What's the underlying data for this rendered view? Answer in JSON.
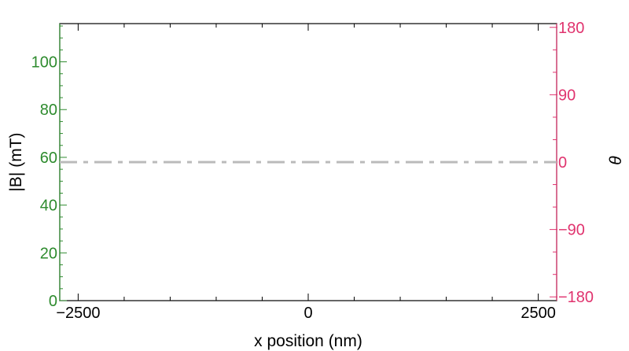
{
  "chart_data": {
    "type": "line",
    "xlabel": "x position (nm)",
    "ylabel_left": "|B| (mT)",
    "ylabel_right": "θ",
    "xlim": [
      -2700,
      2700
    ],
    "ylim_left": [
      0,
      116
    ],
    "ylim_right": [
      -185,
      185
    ],
    "x_ticks": [
      -2500,
      0,
      2500
    ],
    "x_tick_labels": [
      "−2500",
      "0",
      "2500"
    ],
    "y_left_ticks": [
      0,
      20,
      40,
      60,
      80,
      100
    ],
    "y_left_tick_labels": [
      "0",
      "20",
      "40",
      "60",
      "80",
      "100"
    ],
    "y_right_ticks": [
      -180,
      -90,
      0,
      90,
      180
    ],
    "y_right_tick_labels": [
      "−180",
      "−90",
      "0",
      "90",
      "180"
    ],
    "series": [
      {
        "axis": "right",
        "style": "dash-dot",
        "color": "#bbbbbb",
        "x": [
          -2700,
          2700
        ],
        "y": [
          0,
          0
        ]
      }
    ],
    "colors": {
      "left_axis": "#2e8b2e",
      "right_axis": "#e0336e",
      "frame": "#000000"
    },
    "grid": false
  }
}
